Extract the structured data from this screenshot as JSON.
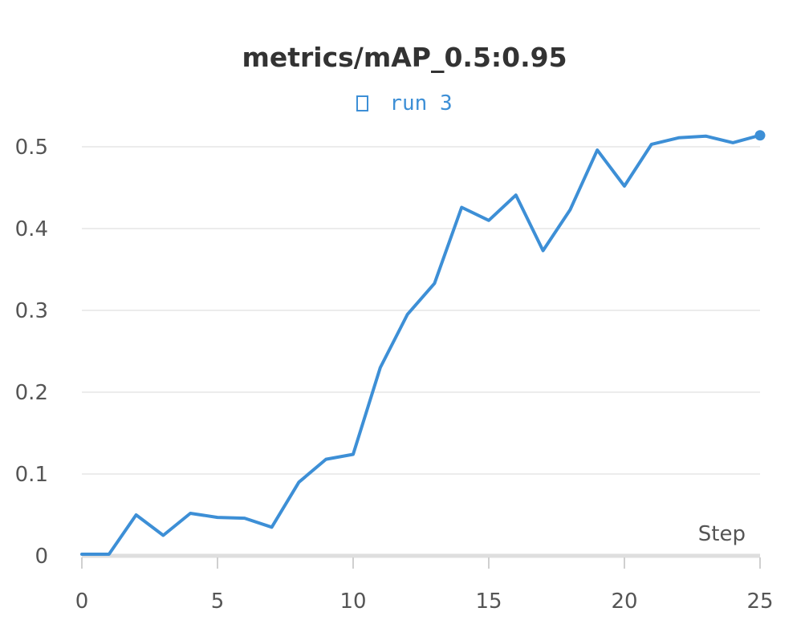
{
  "chart_data": {
    "type": "line",
    "title": "metrics/mAP_0.5:0.95",
    "xlabel": "Step",
    "ylabel": "",
    "xlim": [
      0,
      25
    ],
    "ylim": [
      0,
      0.5
    ],
    "x_ticks": [
      0,
      5,
      10,
      15,
      20,
      25
    ],
    "y_ticks": [
      0,
      0.1,
      0.2,
      0.3,
      0.4,
      0.5
    ],
    "grid": "horizontal",
    "legend_position": "top-center",
    "series": [
      {
        "name": "run 3",
        "color": "#3d8fd6",
        "x": [
          0,
          1,
          2,
          3,
          4,
          5,
          6,
          7,
          8,
          9,
          10,
          11,
          12,
          13,
          14,
          15,
          16,
          17,
          18,
          19,
          20,
          21,
          22,
          23,
          24,
          25
        ],
        "values": [
          0.002,
          0.002,
          0.05,
          0.025,
          0.052,
          0.047,
          0.046,
          0.035,
          0.09,
          0.118,
          0.124,
          0.23,
          0.295,
          0.333,
          0.426,
          0.41,
          0.441,
          0.373,
          0.423,
          0.496,
          0.452,
          0.503,
          0.511,
          0.513,
          0.505,
          0.514
        ]
      }
    ]
  }
}
